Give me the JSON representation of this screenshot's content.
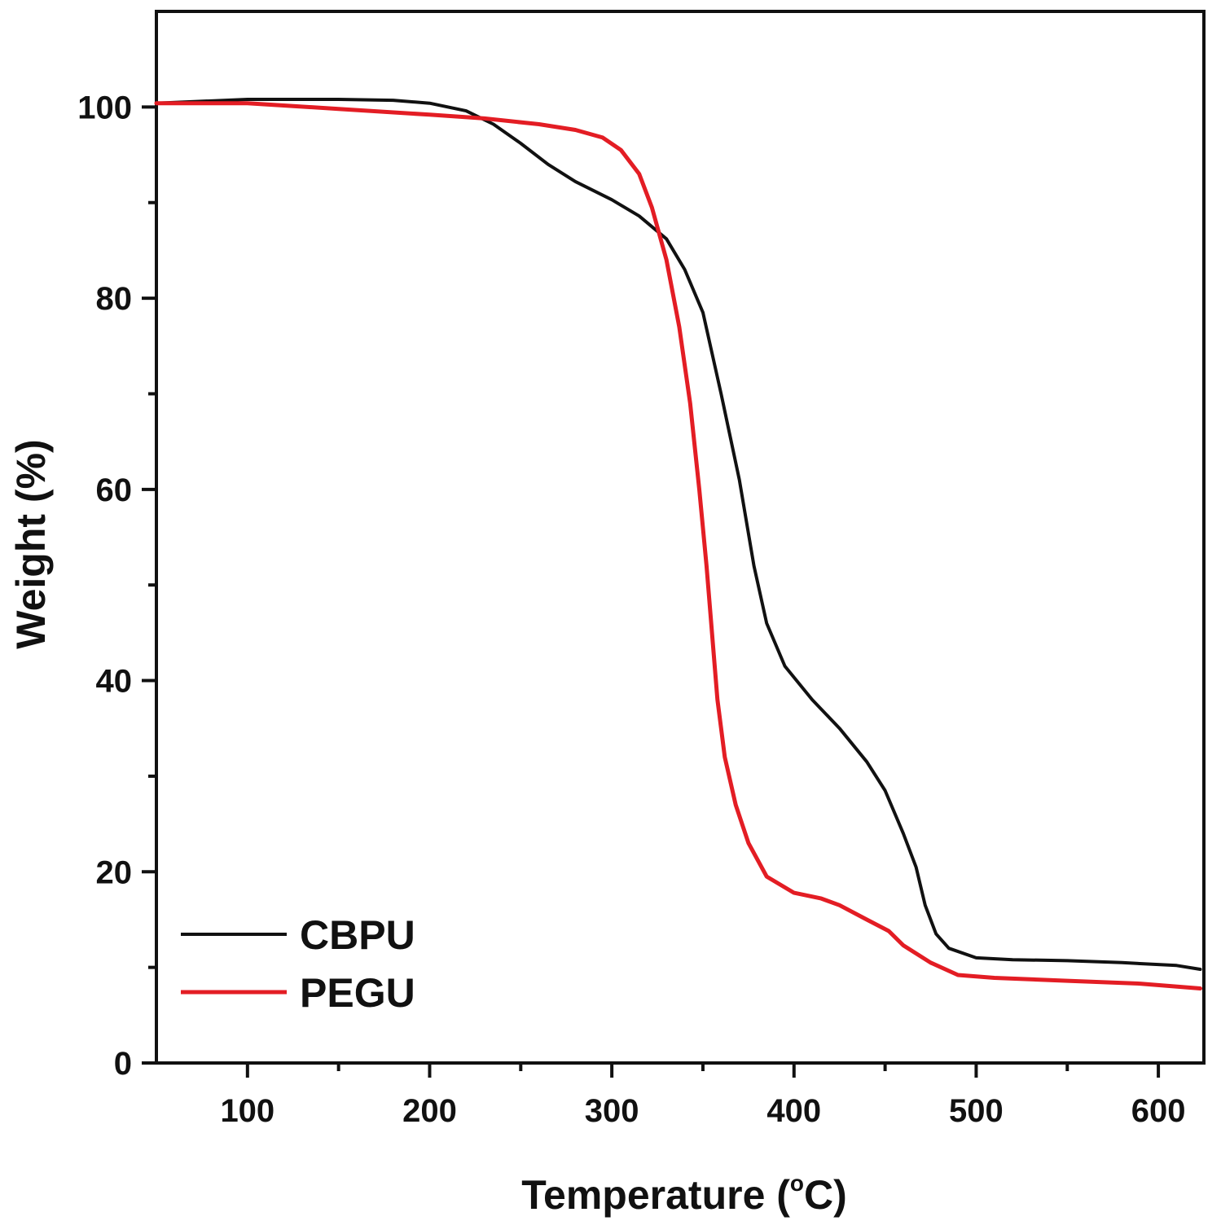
{
  "chart_data": {
    "type": "line",
    "xlabel": "Temperature (°C)",
    "xlabel_parts": {
      "main": "Temperature (",
      "degree": "o",
      "unit": "C)"
    },
    "ylabel": "Weight (%)",
    "xlim": [
      50,
      625
    ],
    "ylim": [
      0,
      110
    ],
    "xticks": [
      100,
      200,
      300,
      400,
      500,
      600
    ],
    "xticks_minor": [
      150,
      250,
      350,
      450,
      550
    ],
    "yticks": [
      0,
      20,
      40,
      60,
      80,
      100
    ],
    "yticks_minor": [
      10,
      30,
      50,
      70,
      90
    ],
    "grid": false,
    "legend_position": "bottom-left",
    "series": [
      {
        "name": "CBPU",
        "color": "#111111",
        "points": [
          [
            50,
            100.4
          ],
          [
            100,
            100.8
          ],
          [
            150,
            100.8
          ],
          [
            180,
            100.7
          ],
          [
            200,
            100.4
          ],
          [
            220,
            99.6
          ],
          [
            235,
            98.2
          ],
          [
            250,
            96.2
          ],
          [
            265,
            94.0
          ],
          [
            280,
            92.2
          ],
          [
            300,
            90.3
          ],
          [
            315,
            88.6
          ],
          [
            330,
            86.2
          ],
          [
            340,
            83.0
          ],
          [
            350,
            78.5
          ],
          [
            360,
            70.0
          ],
          [
            370,
            61.0
          ],
          [
            378,
            52.0
          ],
          [
            385,
            46.0
          ],
          [
            395,
            41.5
          ],
          [
            410,
            38.0
          ],
          [
            425,
            35.0
          ],
          [
            440,
            31.5
          ],
          [
            450,
            28.5
          ],
          [
            460,
            24.0
          ],
          [
            467,
            20.5
          ],
          [
            472,
            16.5
          ],
          [
            478,
            13.5
          ],
          [
            485,
            12.0
          ],
          [
            500,
            11.0
          ],
          [
            520,
            10.8
          ],
          [
            550,
            10.7
          ],
          [
            580,
            10.5
          ],
          [
            610,
            10.2
          ],
          [
            623,
            9.8
          ]
        ]
      },
      {
        "name": "PEGU",
        "color": "#e31d24",
        "points": [
          [
            50,
            100.4
          ],
          [
            100,
            100.4
          ],
          [
            150,
            99.8
          ],
          [
            200,
            99.2
          ],
          [
            230,
            98.8
          ],
          [
            260,
            98.2
          ],
          [
            280,
            97.6
          ],
          [
            295,
            96.8
          ],
          [
            305,
            95.5
          ],
          [
            315,
            93.0
          ],
          [
            322,
            89.5
          ],
          [
            330,
            84.0
          ],
          [
            337,
            77.0
          ],
          [
            343,
            69.0
          ],
          [
            348,
            60.0
          ],
          [
            352,
            52.0
          ],
          [
            355,
            45.0
          ],
          [
            358,
            38.0
          ],
          [
            362,
            32.0
          ],
          [
            368,
            27.0
          ],
          [
            375,
            23.0
          ],
          [
            385,
            19.5
          ],
          [
            400,
            17.8
          ],
          [
            415,
            17.2
          ],
          [
            425,
            16.5
          ],
          [
            440,
            15.0
          ],
          [
            452,
            13.8
          ],
          [
            460,
            12.3
          ],
          [
            475,
            10.5
          ],
          [
            490,
            9.2
          ],
          [
            510,
            8.9
          ],
          [
            550,
            8.6
          ],
          [
            590,
            8.3
          ],
          [
            623,
            7.8
          ]
        ]
      }
    ]
  }
}
